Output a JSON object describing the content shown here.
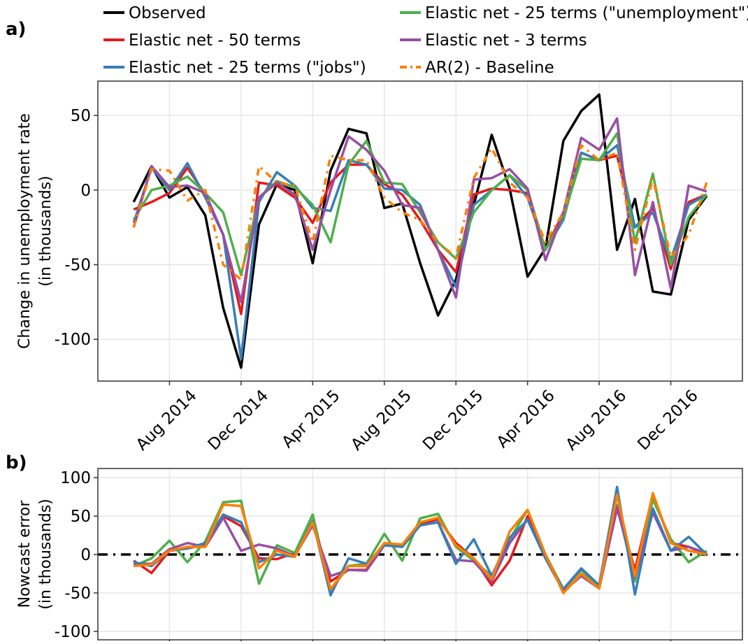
{
  "chart_data": [
    {
      "type": "line",
      "label": "a)",
      "y_label": [
        "Change in unemployment rate",
        "(in thousands)"
      ],
      "x": [
        "2014-06",
        "2014-07",
        "2014-08",
        "2014-09",
        "2014-10",
        "2014-11",
        "2014-12",
        "2015-01",
        "2015-02",
        "2015-03",
        "2015-04",
        "2015-05",
        "2015-06",
        "2015-07",
        "2015-08",
        "2015-09",
        "2015-10",
        "2015-11",
        "2015-12",
        "2016-01",
        "2016-02",
        "2016-03",
        "2016-04",
        "2016-05",
        "2016-06",
        "2016-07",
        "2016-08",
        "2016-09",
        "2016-10",
        "2016-11",
        "2016-12",
        "2017-01",
        "2017-02"
      ],
      "xlim": [
        "2014-04",
        "2017-04"
      ],
      "xticks": [
        {
          "value": "2014-08",
          "label": "Aug 2014"
        },
        {
          "value": "2014-12",
          "label": "Dec 2014"
        },
        {
          "value": "2015-04",
          "label": "Apr 2015"
        },
        {
          "value": "2015-08",
          "label": "Aug 2015"
        },
        {
          "value": "2015-12",
          "label": "Dec 2015"
        },
        {
          "value": "2016-04",
          "label": "Apr 2016"
        },
        {
          "value": "2016-08",
          "label": "Aug 2016"
        },
        {
          "value": "2016-12",
          "label": "Dec 2016"
        }
      ],
      "ylim": [
        -128,
        73
      ],
      "yticks": [
        -100,
        -50,
        0,
        50
      ],
      "grid": true,
      "legend": "top",
      "series": [
        {
          "name": "Observed",
          "color": "#000000",
          "values": [
            -8,
            16,
            -5,
            2,
            -17,
            -79,
            -119,
            -23,
            4,
            0,
            -49,
            13,
            41,
            38,
            -12,
            -9,
            -49,
            -84,
            -60,
            -10,
            37,
            1,
            -58,
            -39,
            33,
            53,
            64,
            -40,
            -6,
            -68,
            -70,
            -20,
            -4
          ]
        },
        {
          "name": "Elastic net - 50 terms",
          "color": "#e41a1c",
          "values": [
            -13,
            -8,
            -2,
            15,
            -3,
            -30,
            -83,
            5,
            3,
            -5,
            -22,
            5,
            17,
            17,
            4,
            -3,
            -20,
            -40,
            -55,
            -3,
            1,
            0,
            -2,
            -40,
            -15,
            25,
            20,
            23,
            -25,
            -12,
            -53,
            -8,
            -3
          ]
        },
        {
          "name": "Elastic net - 25 terms (\"jobs\")",
          "color": "#377eb8",
          "values": [
            -22,
            15,
            0,
            18,
            -5,
            -30,
            -113,
            -8,
            12,
            3,
            -12,
            -14,
            20,
            17,
            1,
            0,
            -10,
            -40,
            -65,
            -10,
            0,
            10,
            -5,
            -40,
            -20,
            25,
            20,
            30,
            -25,
            -15,
            -47,
            -10,
            -3
          ]
        },
        {
          "name": "Elastic net - 25 terms (\"unemployment\")",
          "color": "#4daf4a",
          "values": [
            -20,
            0,
            3,
            9,
            -2,
            -15,
            -57,
            -5,
            6,
            2,
            -10,
            -35,
            17,
            33,
            5,
            4,
            -15,
            -35,
            -46,
            -15,
            0,
            10,
            0,
            -40,
            -18,
            21,
            20,
            38,
            -35,
            11,
            -50,
            -18,
            -3
          ]
        },
        {
          "name": "Elastic net - 3 terms",
          "color": "#984ea3",
          "values": [
            -25,
            16,
            2,
            3,
            -2,
            -30,
            -75,
            -5,
            5,
            -3,
            -40,
            0,
            36,
            27,
            13,
            -10,
            -12,
            -40,
            -72,
            7,
            8,
            14,
            1,
            -47,
            -15,
            35,
            27,
            48,
            -57,
            -8,
            -66,
            3,
            -1
          ]
        },
        {
          "name": "AR(2) - Baseline",
          "color": "#ff7f00",
          "style": "dash-dot",
          "values": [
            -25,
            14,
            13,
            -7,
            0,
            -50,
            -60,
            16,
            5,
            3,
            -35,
            23,
            20,
            20,
            -5,
            -15,
            -20,
            -35,
            -45,
            8,
            28,
            5,
            -5,
            -35,
            -15,
            30,
            20,
            25,
            -40,
            8,
            -45,
            -30,
            5
          ]
        }
      ]
    },
    {
      "type": "line",
      "label": "b)",
      "y_label": [
        "Nowcast error",
        "(in thousands)"
      ],
      "ylim": [
        -111,
        112
      ],
      "yticks": [
        -100,
        -50,
        0,
        50,
        100
      ],
      "grid": true,
      "hline": 0,
      "series": [
        {
          "color": "#e41a1c",
          "values": [
            -8,
            -24,
            5,
            8,
            13,
            50,
            37,
            -5,
            -6,
            2,
            40,
            -35,
            -20,
            -20,
            15,
            12,
            40,
            46,
            15,
            -5,
            -40,
            -8,
            50,
            0,
            -50,
            -25,
            -44,
            60,
            -20,
            78,
            15,
            10,
            0
          ]
        },
        {
          "color": "#4daf4a",
          "values": [
            -15,
            -5,
            18,
            -10,
            17,
            68,
            70,
            -38,
            12,
            2,
            52,
            -47,
            -15,
            -12,
            27,
            -8,
            47,
            53,
            10,
            -8,
            -28,
            20,
            58,
            0,
            -45,
            -20,
            -42,
            65,
            -35,
            72,
            20,
            -10,
            5
          ]
        },
        {
          "color": "#984ea3",
          "values": [
            -12,
            -12,
            7,
            15,
            10,
            48,
            5,
            13,
            8,
            -2,
            38,
            -28,
            -20,
            -21,
            12,
            12,
            38,
            42,
            -7,
            -9,
            -35,
            15,
            46,
            -5,
            -48,
            -28,
            -44,
            62,
            -30,
            55,
            5,
            10,
            2
          ]
        },
        {
          "color": "#377eb8",
          "values": [
            -10,
            -15,
            5,
            8,
            15,
            52,
            42,
            -10,
            0,
            -3,
            44,
            -53,
            -5,
            -12,
            12,
            10,
            38,
            42,
            -12,
            20,
            -28,
            22,
            45,
            -5,
            -45,
            -18,
            -40,
            88,
            -52,
            60,
            5,
            23,
            0
          ]
        },
        {
          "color": "#ff7f00",
          "values": [
            -15,
            -13,
            5,
            10,
            10,
            65,
            63,
            -18,
            5,
            -3,
            42,
            -45,
            -15,
            -15,
            15,
            13,
            42,
            48,
            12,
            -5,
            -32,
            30,
            58,
            0,
            -50,
            -25,
            -44,
            78,
            -28,
            80,
            15,
            5,
            0
          ]
        }
      ]
    }
  ]
}
